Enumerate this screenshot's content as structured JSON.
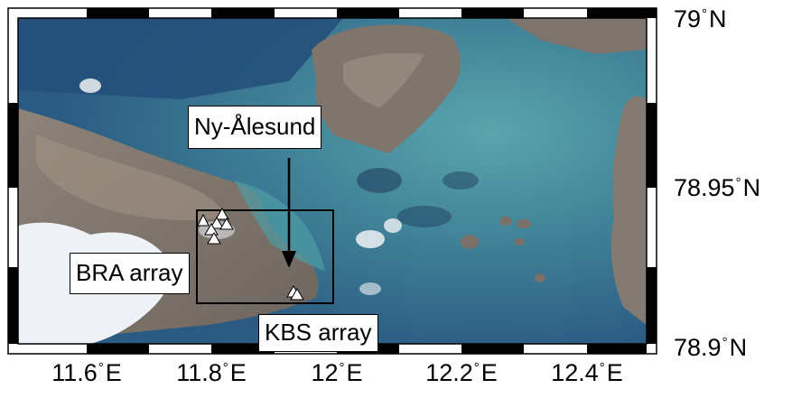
{
  "map": {
    "latitude_labels": [
      {
        "value": "79",
        "hemisphere": "N"
      },
      {
        "value": "78.95",
        "hemisphere": "N"
      },
      {
        "value": "78.9",
        "hemisphere": "N"
      }
    ],
    "longitude_labels": [
      {
        "value": "11.6",
        "hemisphere": "E"
      },
      {
        "value": "11.8",
        "hemisphere": "E"
      },
      {
        "value": "12",
        "hemisphere": "E"
      },
      {
        "value": "12.2",
        "hemisphere": "E"
      },
      {
        "value": "12.4",
        "hemisphere": "E"
      }
    ],
    "degree_symbol": "°",
    "annotations": {
      "town": "Ny-Ålesund",
      "bra_array": "BRA array",
      "kbs_array": "KBS array"
    },
    "colors": {
      "sea": "#2a5a80",
      "shallow_water": "#4a9aa6",
      "land": "#857a70",
      "cloud": "#f2f4f7",
      "station": "#ffffff"
    },
    "station_marker": "triangle"
  }
}
